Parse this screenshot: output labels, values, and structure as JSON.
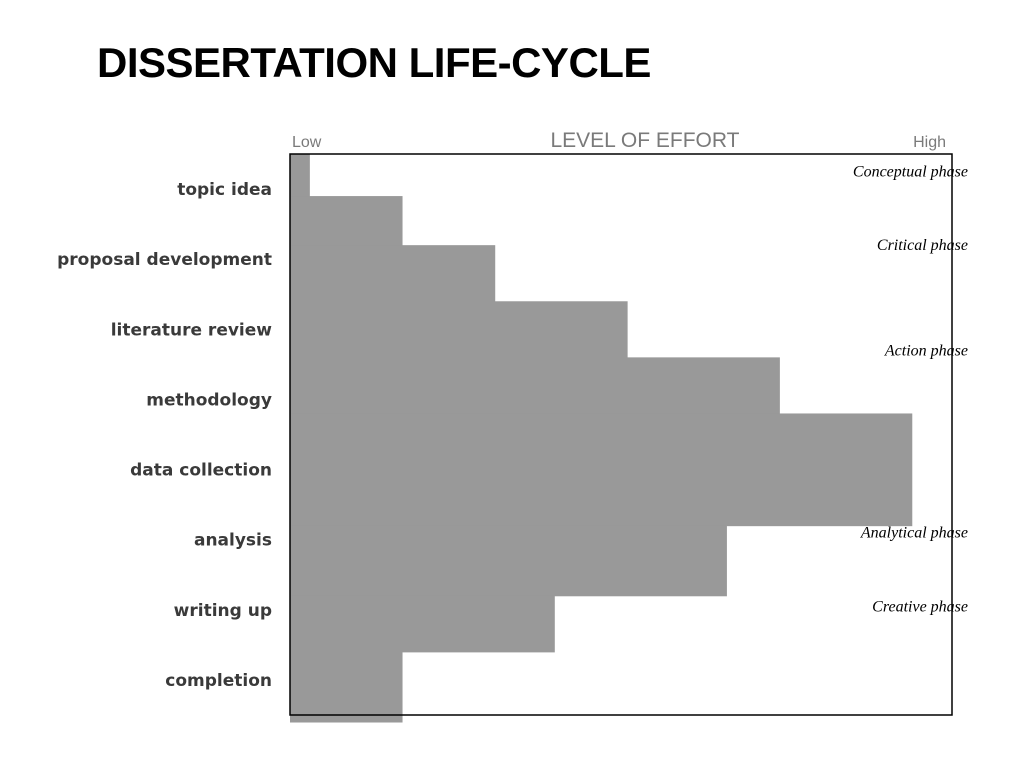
{
  "slide": {
    "title": "DISSERTATION LIFE-CYCLE"
  },
  "chart_data": {
    "type": "bar",
    "orientation": "horizontal-stepped",
    "title": "LEVEL OF EFFORT",
    "x_axis": {
      "low_label": "Low",
      "high_label": "High",
      "range": [
        0,
        100
      ]
    },
    "categories": [
      "topic idea",
      "proposal development",
      "literature review",
      "methodology",
      "data collection",
      "analysis",
      "writing up",
      "completion"
    ],
    "steps": [
      {
        "start": 0.0,
        "end": 0.6,
        "value": 3
      },
      {
        "start": 0.6,
        "end": 1.3,
        "value": 17
      },
      {
        "start": 1.3,
        "end": 2.1,
        "value": 31
      },
      {
        "start": 2.1,
        "end": 2.9,
        "value": 51
      },
      {
        "start": 2.9,
        "end": 3.7,
        "value": 74
      },
      {
        "start": 3.7,
        "end": 5.3,
        "value": 94
      },
      {
        "start": 5.3,
        "end": 6.3,
        "value": 66
      },
      {
        "start": 6.3,
        "end": 7.1,
        "value": 40
      },
      {
        "start": 7.1,
        "end": 8.1,
        "value": 17
      }
    ],
    "phases": [
      {
        "label": "Conceptual phase",
        "at": 0.25
      },
      {
        "label": "Critical phase",
        "at": 1.3
      },
      {
        "label": "Action phase",
        "at": 2.8
      },
      {
        "label": "Analytical phase",
        "at": 5.4
      },
      {
        "label": "Creative phase",
        "at": 6.45
      }
    ],
    "colors": {
      "bar": "#999999",
      "frame": "#000000",
      "background": "#ffffff"
    },
    "grid": false,
    "legend": "none"
  }
}
